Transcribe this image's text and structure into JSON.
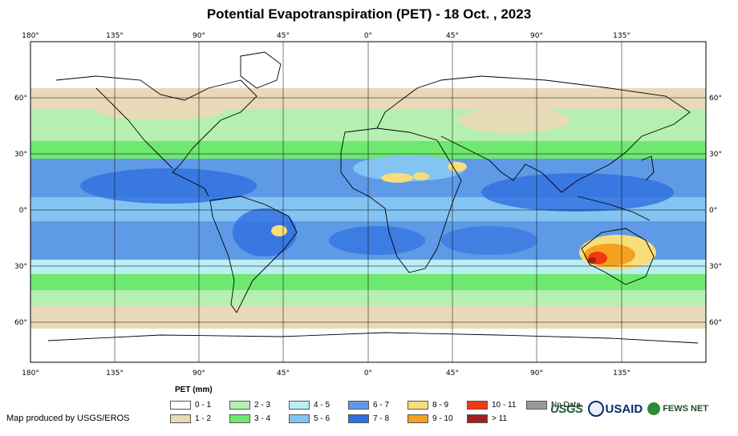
{
  "title": "Potential Evapotranspiration (PET) - 18 Oct. , 2023",
  "lon_labels_top": [
    "180°",
    "135°",
    "90°",
    "45°",
    "0°",
    "45°",
    "90°",
    "135°"
  ],
  "lon_labels_bottom": [
    "180°",
    "135°",
    "90°",
    "45°",
    "0°",
    "45°",
    "90°",
    "135°"
  ],
  "lat_labels": [
    "60°",
    "30°",
    "0°",
    "30°",
    "60°"
  ],
  "legend": {
    "title": "PET (mm)",
    "items": [
      {
        "label": "0 - 1",
        "color": "#ffffff"
      },
      {
        "label": "1 - 2",
        "color": "#ead9b8"
      },
      {
        "label": "2 - 3",
        "color": "#b5f0b0"
      },
      {
        "label": "3 - 4",
        "color": "#6ee86e"
      },
      {
        "label": "4 - 5",
        "color": "#b8eef4"
      },
      {
        "label": "5 - 6",
        "color": "#84c4f2"
      },
      {
        "label": "6 - 7",
        "color": "#5f9ae6"
      },
      {
        "label": "7 - 8",
        "color": "#2f6fe0"
      },
      {
        "label": "8 - 9",
        "color": "#f8de78"
      },
      {
        "label": "9 - 10",
        "color": "#f5a020"
      },
      {
        "label": "10 - 11",
        "color": "#ee3a12"
      },
      {
        "label": "> 11",
        "color": "#a02020"
      },
      {
        "label": "No Data",
        "color": "#9a9a9a"
      }
    ]
  },
  "credit": "Map produced by USGS/EROS",
  "logos": {
    "usgs": "USGS",
    "usaid": "USAID",
    "fews": "FEWS NET"
  }
}
